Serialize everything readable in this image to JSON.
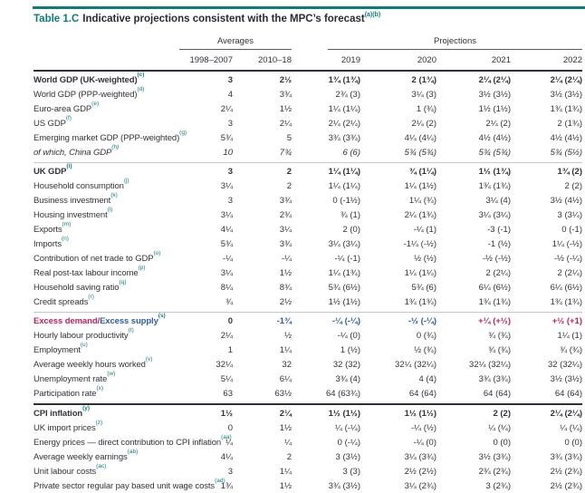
{
  "title": {
    "prefix": "Table 1.C",
    "text": "Indicative projections consistent with the MPC’s forecast",
    "sup": "(a)(b)"
  },
  "colgroups": {
    "averages": "Averages",
    "projections": "Projections"
  },
  "columns": [
    "1998–2007",
    "2010–18",
    "2019",
    "2020",
    "2021",
    "2022"
  ],
  "colors": {
    "teal": "#0a7e79",
    "dark": "#33323a",
    "magenta": "#c41f5e",
    "blue": "#2e5ea6"
  },
  "sections": [
    {
      "rows": [
        {
          "label": "World GDP (UK-weighted)",
          "sup": "(c)",
          "style": "bold",
          "values": [
            "3",
            "2½",
            "1¾ (1¾)",
            "2 (1¾)",
            "2¼ (2¼)",
            "2¼ (2¼)"
          ]
        },
        {
          "label": "World GDP (PPP-weighted)",
          "sup": "(d)",
          "values": [
            "4",
            "3¾",
            "2¾ (3)",
            "3¼ (3)",
            "3½ (3½)",
            "3½ (3½)"
          ]
        },
        {
          "label": "Euro-area GDP",
          "sup": "(e)",
          "values": [
            "2¼",
            "1½",
            "1¼ (1¼)",
            "1 (¾)",
            "1½ (1½)",
            "1¾ (1¾)"
          ]
        },
        {
          "label": "US GDP",
          "sup": "(f)",
          "values": [
            "3",
            "2¼",
            "2¼ (2¼)",
            "2¼ (2)",
            "2¼ (2)",
            "2 (1¾)"
          ]
        },
        {
          "label": "Emerging market GDP (PPP-weighted)",
          "sup": "(g)",
          "values": [
            "5¾",
            "5",
            "3¾ (3¾)",
            "4¼ (4¼)",
            "4½ (4½)",
            "4½ (4½)"
          ]
        },
        {
          "label": "of which, China GDP",
          "sup": "(h)",
          "style": "italic",
          "values": [
            "10",
            "7¾",
            "6 (6)",
            "5¾ (5¾)",
            "5¾ (5¾)",
            "5¾ (5½)"
          ]
        }
      ]
    },
    {
      "divider": "gray",
      "rows": [
        {
          "label": "UK GDP",
          "sup": "(i)",
          "style": "bold",
          "values": [
            "3",
            "2",
            "1¼ (1¼)",
            "¾ (1¼)",
            "1½ (1¾)",
            "1¾ (2)"
          ]
        },
        {
          "label": "Household consumption",
          "sup": "(j)",
          "values": [
            "3¼",
            "2",
            "1¼ (1¼)",
            "1¼ (1½)",
            "1¾ (1¾)",
            "2 (2)"
          ]
        },
        {
          "label": "Business investment",
          "sup": "(k)",
          "values": [
            "3",
            "3¾",
            "0 (-1½)",
            "1¼ (¾)",
            "3¼ (4)",
            "3½ (4½)"
          ]
        },
        {
          "label": "Housing investment",
          "sup": "(l)",
          "values": [
            "3¼",
            "2¾",
            "¾ (1)",
            "2¼ (1¾)",
            "3¼ (3¼)",
            "3 (3¼)"
          ]
        },
        {
          "label": "Exports",
          "sup": "(m)",
          "values": [
            "4¼",
            "3¼",
            "2 (0)",
            "-¼ (1)",
            "-3 (-1)",
            "0 (-1)"
          ]
        },
        {
          "label": "Imports",
          "sup": "(n)",
          "values": [
            "5¾",
            "3¾",
            "3¼ (3¼)",
            "-1¼ (-½)",
            "-1 (½)",
            "1¼ (-½)"
          ]
        },
        {
          "label": "Contribution of net trade to GDP",
          "sup": "(o)",
          "values": [
            "-¼",
            "-¼",
            "-¼ (-1)",
            "½ (½)",
            "-½ (-½)",
            "-½ (-¼)"
          ]
        },
        {
          "label": "Real post-tax labour income",
          "sup": "(p)",
          "values": [
            "3¼",
            "1½",
            "1¼ (1¾)",
            "1¼ (1¼)",
            "2 (2¼)",
            "2 (2¼)"
          ]
        },
        {
          "label": "Household saving ratio",
          "sup": "(q)",
          "values": [
            "8¼",
            "8¾",
            "5¾ (6½)",
            "5¾ (6)",
            "6¼ (6½)",
            "6¼ (6½)"
          ]
        },
        {
          "label": "Credit spreads",
          "sup": "(r)",
          "values": [
            "¾",
            "2½",
            "1½ (1½)",
            "1¾ (1¾)",
            "1¾ (1¾)",
            "1¾ (1¾)"
          ]
        }
      ]
    },
    {
      "divider": "gray",
      "rows": [
        {
          "label_parts": [
            {
              "text": "Excess demand/",
              "color": "magenta"
            },
            {
              "text": "Excess supply",
              "color": "blue"
            }
          ],
          "sup": "(s)",
          "style": "bold",
          "values": [
            "0",
            "-1¾",
            "-¼ (-¼)",
            "-½ (-¼)",
            "+¼ (+½)",
            "+½ (+1)"
          ],
          "value_colors": [
            "dark",
            "blue",
            "blue",
            "blue",
            "magenta",
            "magenta"
          ]
        },
        {
          "label": "Hourly labour productivity",
          "sup": "(t)",
          "values": [
            "2¼",
            "½",
            "-¼ (0)",
            "0 (¾)",
            "¾ (¾)",
            "1¼ (1)"
          ]
        },
        {
          "label": "Employment",
          "sup": "(u)",
          "values": [
            "1",
            "1¼",
            "1 (½)",
            "½ (¾)",
            "¾ (¾)",
            "¾ (¾)"
          ]
        },
        {
          "label": "Average weekly hours worked",
          "sup": "(v)",
          "values": [
            "32¼",
            "32",
            "32 (32)",
            "32¼ (32¼)",
            "32¼ (32¼)",
            "32 (32¼)"
          ]
        },
        {
          "label": "Unemployment rate",
          "sup": "(w)",
          "values": [
            "5¼",
            "6¼",
            "3¾ (4)",
            "4 (4)",
            "3¾ (3¾)",
            "3½ (3½)"
          ]
        },
        {
          "label": "Participation rate",
          "sup": "(x)",
          "values": [
            "63",
            "63½",
            "64 (63¾)",
            "64 (64)",
            "64 (64)",
            "64 (64)"
          ]
        }
      ]
    },
    {
      "divider": "dark",
      "rows": [
        {
          "label": "CPI inflation",
          "sup": "(y)",
          "style": "bold",
          "values": [
            "1½",
            "2¼",
            "1½ (1½)",
            "1½ (1½)",
            "2 (2)",
            "2¼ (2¼)"
          ]
        },
        {
          "label": "UK import prices",
          "sup": "(z)",
          "values": [
            "0",
            "1½",
            "¼ (-¼)",
            "-¼ (½)",
            "¼ (¼)",
            "¼ (¼)"
          ]
        },
        {
          "label": "Energy prices — direct contribution to CPI inflation",
          "sup": "(aa)",
          "values": [
            "¼",
            "¼",
            "0 (-¼)",
            "-¼ (0)",
            "0 (0)",
            "0 (0)"
          ]
        },
        {
          "label": "Average weekly earnings",
          "sup": "(ab)",
          "values": [
            "4¼",
            "2",
            "3 (3½)",
            "3¼ (3¾)",
            "3½ (3¾)",
            "3¾ (3¾)"
          ]
        },
        {
          "label": "Unit labour costs",
          "sup": "(ac)",
          "values": [
            "3",
            "1¼",
            "3 (3)",
            "2½ (2½)",
            "2¾ (2¾)",
            "2½ (2¾)"
          ]
        },
        {
          "label": "Private sector regular pay based unit wage costs",
          "sup": "(ad)",
          "values": [
            "1¾",
            "1½",
            "3¾ (3½)",
            "3¼ (2¾)",
            "3 (2¾)",
            "2½ (2¾)"
          ]
        }
      ]
    }
  ]
}
